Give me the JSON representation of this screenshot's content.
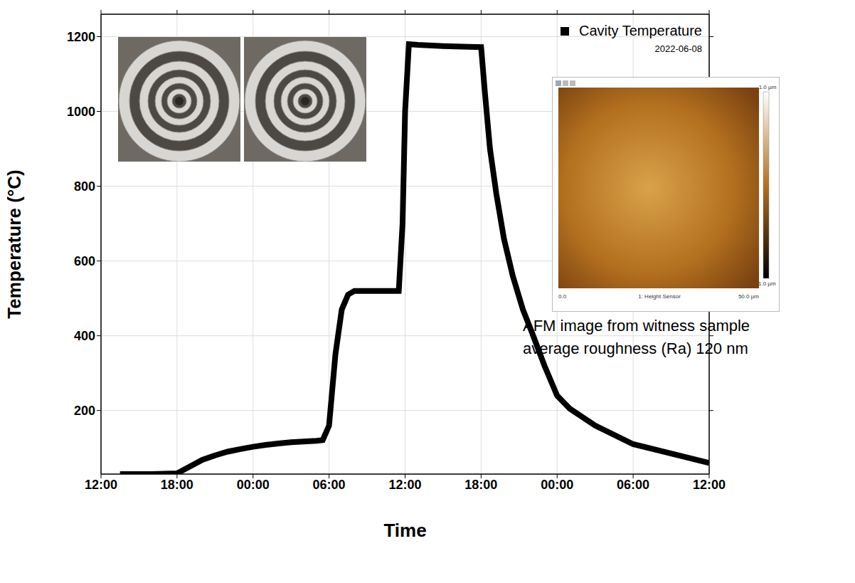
{
  "chart_data": {
    "type": "line",
    "x_label": "Time",
    "y_label": "Temperature (°C)",
    "x": [
      1.5,
      4,
      6,
      7,
      8,
      9,
      10,
      11,
      12,
      13,
      14,
      15,
      16,
      17,
      17.5,
      18,
      18.5,
      19,
      19.5,
      20,
      22,
      23.5,
      23.8,
      24,
      24.3,
      25,
      27,
      29,
      30,
      30.3,
      30.7,
      31.2,
      31.8,
      32.5,
      33.3,
      34,
      35,
      36,
      37,
      39,
      42,
      45,
      48
    ],
    "series": [
      {
        "name": "Cavity Temperature",
        "color": "#000000",
        "marker": "square",
        "line_style": "solid",
        "values": [
          30,
          30,
          32,
          50,
          68,
          80,
          90,
          97,
          103,
          108,
          112,
          115,
          117,
          119,
          121,
          160,
          350,
          470,
          510,
          520,
          520,
          520,
          700,
          1000,
          1180,
          1178,
          1175,
          1173,
          1172,
          1050,
          900,
          780,
          660,
          560,
          470,
          410,
          320,
          240,
          205,
          160,
          110,
          85,
          60
        ]
      }
    ],
    "xlim": [
      0,
      48
    ],
    "xticks": [
      {
        "value": 0,
        "label": "12:00"
      },
      {
        "value": 6,
        "label": "18:00"
      },
      {
        "value": 12,
        "label": "00:00"
      },
      {
        "value": 18,
        "label": "06:00"
      },
      {
        "value": 24,
        "label": "12:00"
      },
      {
        "value": 30,
        "label": "18:00"
      },
      {
        "value": 36,
        "label": "00:00"
      },
      {
        "value": 42,
        "label": "06:00"
      },
      {
        "value": 48,
        "label": "12:00"
      }
    ],
    "ylim": [
      30,
      1260
    ],
    "yticks": [
      200,
      400,
      600,
      800,
      1000,
      1200
    ],
    "grid": true,
    "legend": "top-right",
    "annotations": [
      "2022-06-08",
      "AFM image from witness sample",
      "average roughness (Ra) 120 nm"
    ],
    "inset_labels": [
      "1.0 µm",
      "-1.0 µm",
      "0.0",
      "1: Height Sensor",
      "50.0 µm"
    ]
  }
}
